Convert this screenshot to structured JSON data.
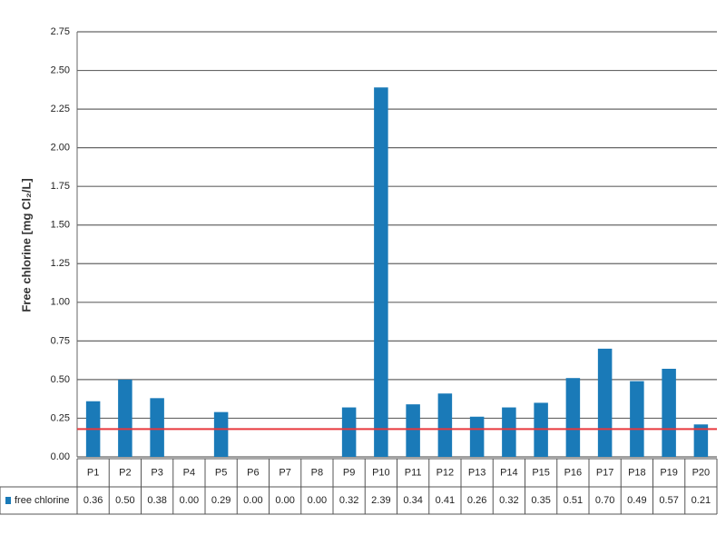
{
  "chart_data": {
    "type": "bar",
    "y_label": "Free chlorine [mg Cl₂/L]",
    "categories": [
      "P1",
      "P2",
      "P3",
      "P4",
      "P5",
      "P6",
      "P7",
      "P8",
      "P9",
      "P10",
      "P11",
      "P12",
      "P13",
      "P14",
      "P15",
      "P16",
      "P17",
      "P18",
      "P19",
      "P20"
    ],
    "series": [
      {
        "name": "free chlorine",
        "color": "#1a7ab8",
        "values": [
          0.36,
          0.5,
          0.38,
          0.0,
          0.29,
          0.0,
          0.0,
          0.0,
          0.32,
          2.39,
          0.34,
          0.41,
          0.26,
          0.32,
          0.35,
          0.51,
          0.7,
          0.49,
          0.57,
          0.21
        ],
        "value_labels": [
          "0.36",
          "0.50",
          "0.38",
          "0.00",
          "0.29",
          "0.00",
          "0.00",
          "0.00",
          "0.32",
          "2.39",
          "0.34",
          "0.41",
          "0.26",
          "0.32",
          "0.35",
          "0.51",
          "0.70",
          "0.49",
          "0.57",
          "0.21"
        ]
      }
    ],
    "ylim": [
      0,
      2.75
    ],
    "yticks": [
      {
        "value": 0,
        "label": "0.00"
      },
      {
        "value": 0.25,
        "label": "0.25"
      },
      {
        "value": 0.5,
        "label": "0.50"
      },
      {
        "value": 0.75,
        "label": "0.75"
      },
      {
        "value": 1,
        "label": "1.00"
      },
      {
        "value": 1.25,
        "label": "1.25"
      },
      {
        "value": 1.5,
        "label": "1.50"
      },
      {
        "value": 1.75,
        "label": "1.75"
      },
      {
        "value": 2,
        "label": "2.00"
      },
      {
        "value": 2.25,
        "label": "2.25"
      },
      {
        "value": 2.5,
        "label": "2.50"
      },
      {
        "value": 2.75,
        "label": "2.75"
      }
    ],
    "grid": true,
    "reference_line": {
      "value": 0.18,
      "color": "#e8383d"
    }
  }
}
